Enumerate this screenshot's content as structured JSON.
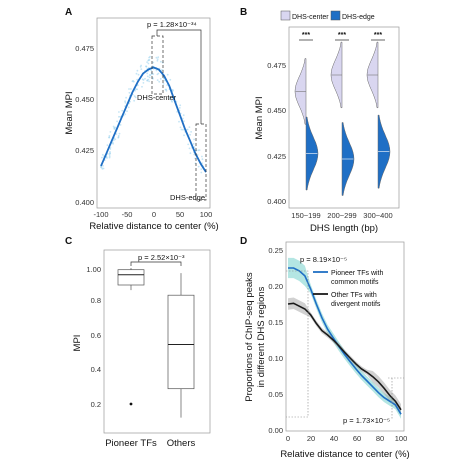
{
  "colors": {
    "blue": "#1f6fc5",
    "lightblue": "#9fd3ee",
    "lavender": "#d9d6f0",
    "teal": "#59c7c1",
    "black": "#1a1a1a",
    "grey": "#9a9a9a"
  },
  "chart_data": [
    {
      "panel": "A",
      "type": "line",
      "xlabel": "Relative distance to center (%)",
      "ylabel": "Mean MPI",
      "xlim": [
        -100,
        100
      ],
      "ylim": [
        0.4,
        0.48
      ],
      "xticks": [
        "-100",
        "-50",
        "0",
        "50",
        "100"
      ],
      "yticks": [
        "0.400",
        "0.425",
        "0.450",
        "0.475"
      ],
      "x": [
        -100,
        -90,
        -80,
        -70,
        -60,
        -50,
        -40,
        -30,
        -20,
        -10,
        0,
        10,
        20,
        30,
        40,
        50,
        60,
        70,
        80,
        90,
        100
      ],
      "y": [
        0.419,
        0.425,
        0.431,
        0.437,
        0.443,
        0.449,
        0.455,
        0.46,
        0.464,
        0.466,
        0.467,
        0.466,
        0.463,
        0.458,
        0.451,
        0.444,
        0.437,
        0.431,
        0.425,
        0.42,
        0.416
      ],
      "annotations": {
        "pvalue": "p = 1.28×10⁻³⁴",
        "center_label": "DHS-center",
        "edge_label": "DHS-edge"
      }
    },
    {
      "panel": "B",
      "type": "violin",
      "xlabel": "DHS length (bp)",
      "ylabel": "Mean MPI",
      "ylim": [
        0.4,
        0.48
      ],
      "yticks": [
        "0.400",
        "0.425",
        "0.450",
        "0.475"
      ],
      "categories": [
        "150~199",
        "200~299",
        "300~400"
      ],
      "legend": [
        "DHS-center",
        "DHS-edge"
      ],
      "significance": [
        "***",
        "***",
        "***"
      ],
      "center_medians": [
        0.46,
        0.469,
        0.469
      ],
      "edge_medians": [
        0.426,
        0.423,
        0.427
      ]
    },
    {
      "panel": "C",
      "type": "box",
      "ylabel": "MPI",
      "ylim": [
        0.15,
        1.05
      ],
      "yticks": [
        "0.2",
        "0.4",
        "0.6",
        "0.8",
        "1.00"
      ],
      "categories": [
        "Pioneer TFs",
        "Others"
      ],
      "boxes": [
        {
          "min": 0.87,
          "q1": 0.9,
          "median": 0.96,
          "q3": 0.99,
          "max": 1.0,
          "outliers": [
            0.2
          ]
        },
        {
          "min": 0.12,
          "q1": 0.29,
          "median": 0.55,
          "q3": 0.84,
          "max": 0.97,
          "outliers": []
        }
      ],
      "annotations": {
        "pvalue": "p = 2.52×10⁻³"
      }
    },
    {
      "panel": "D",
      "type": "line",
      "xlabel": "Relative distance to center (%)",
      "ylabel": "Proportions of ChIP-seq peaks in different DHS regions",
      "xlim": [
        0,
        100
      ],
      "ylim": [
        0,
        0.26
      ],
      "xticks": [
        "0",
        "20",
        "40",
        "60",
        "80",
        "100"
      ],
      "yticks": [
        "0.00",
        "0.05",
        "0.10",
        "0.15",
        "0.20",
        "0.25"
      ],
      "x": [
        0,
        5,
        10,
        15,
        20,
        25,
        30,
        35,
        40,
        45,
        50,
        55,
        60,
        65,
        70,
        75,
        80,
        85,
        90,
        95,
        100
      ],
      "series": [
        {
          "name": "Pioneer TFs with common motifs",
          "values": [
            0.225,
            0.225,
            0.221,
            0.214,
            0.196,
            0.175,
            0.156,
            0.14,
            0.128,
            0.116,
            0.105,
            0.095,
            0.085,
            0.076,
            0.068,
            0.06,
            0.052,
            0.045,
            0.04,
            0.035,
            0.022
          ]
        },
        {
          "name": "Other TFs with divergent motifs",
          "values": [
            0.175,
            0.176,
            0.172,
            0.168,
            0.16,
            0.148,
            0.138,
            0.132,
            0.125,
            0.117,
            0.108,
            0.1,
            0.092,
            0.085,
            0.08,
            0.074,
            0.067,
            0.058,
            0.048,
            0.04,
            0.028
          ]
        }
      ],
      "annotations": {
        "pvalue_top": "p = 8.19×10⁻⁵",
        "pvalue_bottom": "p = 1.73×10⁻⁵"
      }
    }
  ]
}
